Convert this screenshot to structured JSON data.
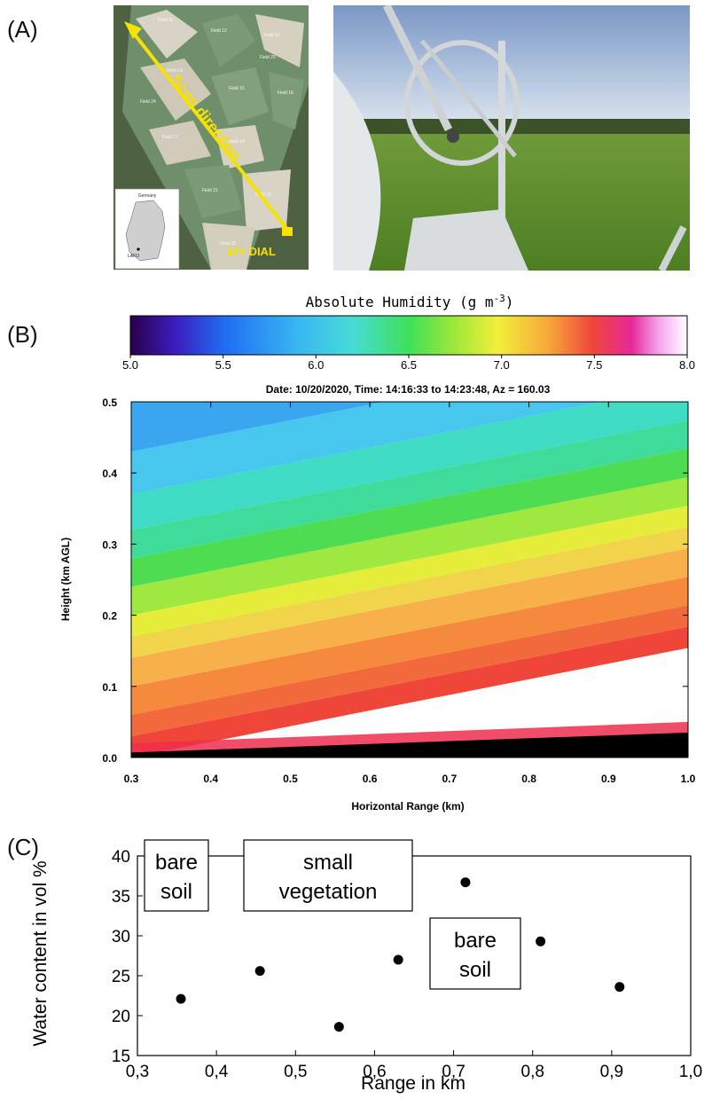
{
  "panels": {
    "a_label": "(A)",
    "b_label": "(B)",
    "c_label": "(C)"
  },
  "map": {
    "scan_label": "Scan direction",
    "instrument_label": "WV DIAL",
    "inset_country": "Germany",
    "inset_site": "LAFO",
    "field_labels": [
      "Field 11",
      "Field 12",
      "Field 13",
      "Field 14",
      "Field 15",
      "Field 16",
      "Field 17",
      "Field 18",
      "Field 21",
      "Field 22",
      "Field 23",
      "Field 24",
      "Field 25"
    ]
  },
  "colorbar": {
    "title": "Absolute Humidity (g m",
    "title_exp": "-3",
    "title_close": ")",
    "ticks": [
      "5.0",
      "5.5",
      "6.0",
      "6.5",
      "7.0",
      "7.5",
      "8.0"
    ]
  },
  "chart_data": [
    {
      "type": "heatmap",
      "title": "Date: 10/20/2020, Time: 14:16:33 to 14:23:48, Az = 160.03",
      "xlabel": "Horizontal Range (km)",
      "ylabel": "Height (km AGL)",
      "xlim": [
        0.3,
        1.0
      ],
      "ylim": [
        0.0,
        0.5
      ],
      "xticks": [
        "0.3",
        "0.4",
        "0.5",
        "0.6",
        "0.7",
        "0.8",
        "0.9",
        "1.0"
      ],
      "yticks": [
        "0.0",
        "0.1",
        "0.2",
        "0.3",
        "0.4",
        "0.5"
      ],
      "colorbar_range": [
        5.0,
        8.0
      ],
      "colormap_colors": [
        "#2a0048",
        "#3b1cbf",
        "#1f6ef2",
        "#39b6f2",
        "#46dcd6",
        "#3ee05a",
        "#9be83a",
        "#f2ef3a",
        "#f7a93a",
        "#f0463a",
        "#e8289a",
        "#f4a6ee",
        "#ffffff"
      ],
      "ground_mask_color": "#000000"
    },
    {
      "type": "scatter",
      "xlabel": "Range in km",
      "ylabel": "Water content in vol %",
      "xlim": [
        0.3,
        1.0
      ],
      "ylim": [
        15,
        40
      ],
      "xticks": [
        "0,3",
        "0,4",
        "0,5",
        "0,6",
        "0,7",
        "0,8",
        "0,9",
        "1,0"
      ],
      "yticks": [
        "15",
        "20",
        "25",
        "30",
        "35",
        "40"
      ],
      "points": [
        {
          "x": 0.355,
          "y": 22.1
        },
        {
          "x": 0.455,
          "y": 25.6
        },
        {
          "x": 0.555,
          "y": 18.6
        },
        {
          "x": 0.63,
          "y": 27.0
        },
        {
          "x": 0.715,
          "y": 36.7
        },
        {
          "x": 0.81,
          "y": 29.3
        },
        {
          "x": 0.91,
          "y": 23.6
        }
      ],
      "annotations": [
        {
          "line1": "bare",
          "line2": "soil"
        },
        {
          "line1": "small",
          "line2": "vegetation"
        },
        {
          "line1": "bare",
          "line2": "soil"
        }
      ]
    }
  ]
}
